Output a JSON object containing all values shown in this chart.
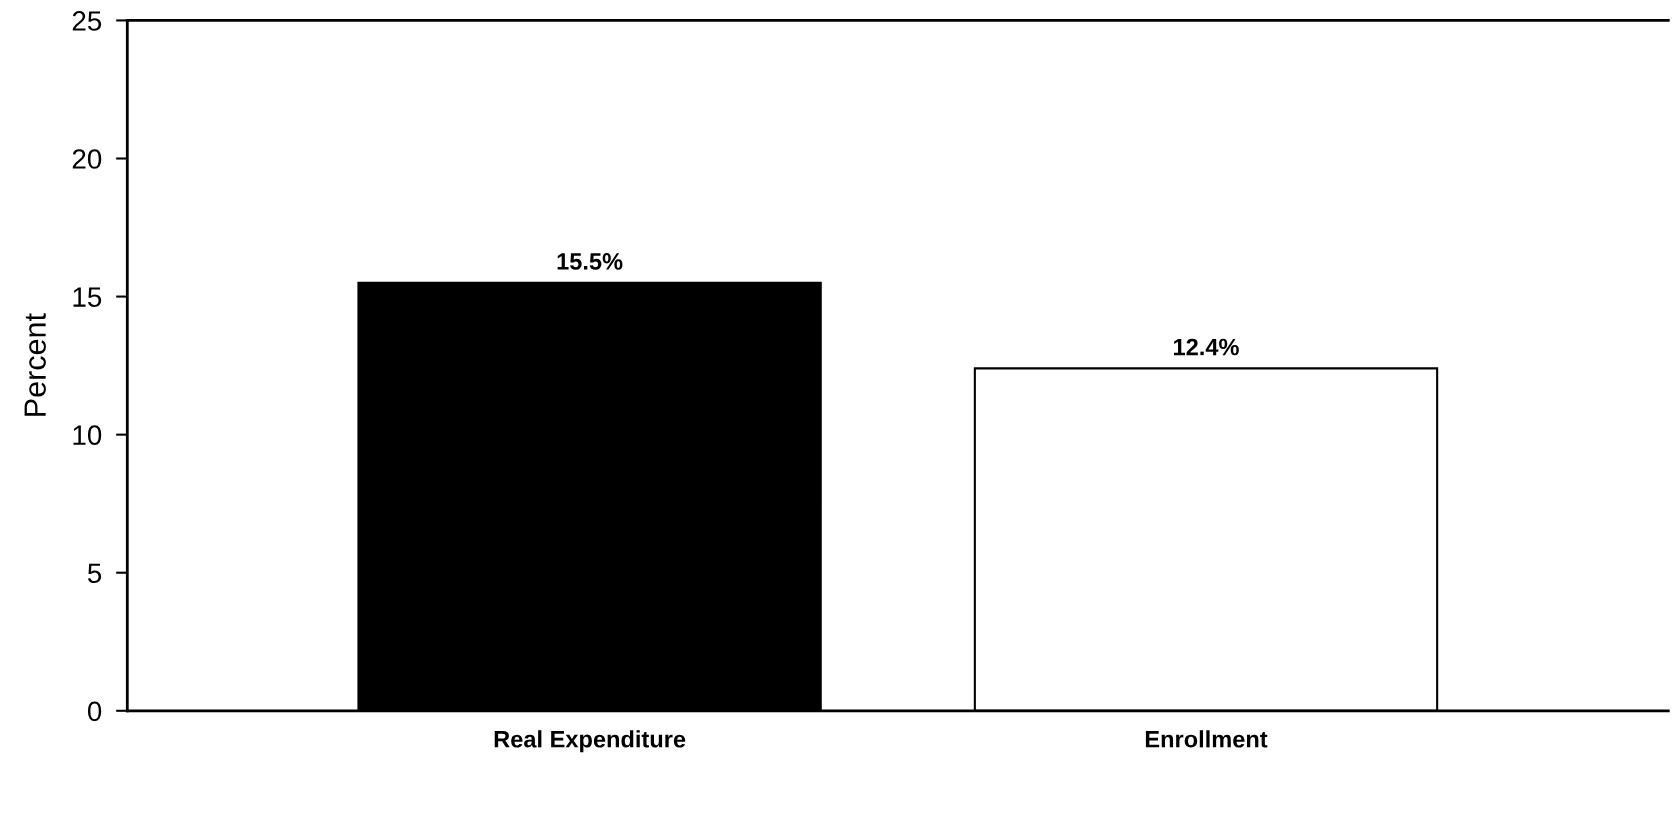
{
  "chart_data": {
    "type": "bar",
    "ylabel": "Percent",
    "categories": [
      "Real Expenditure",
      "Enrollment"
    ],
    "values": [
      15.5,
      12.4
    ],
    "colors": [
      "#000000",
      "#ffffff"
    ],
    "value_labels": [
      "15.5%",
      "12.4%"
    ],
    "ylim": [
      0,
      25
    ],
    "yticks": [
      0,
      5,
      10,
      15,
      20,
      25
    ],
    "grid": false
  }
}
